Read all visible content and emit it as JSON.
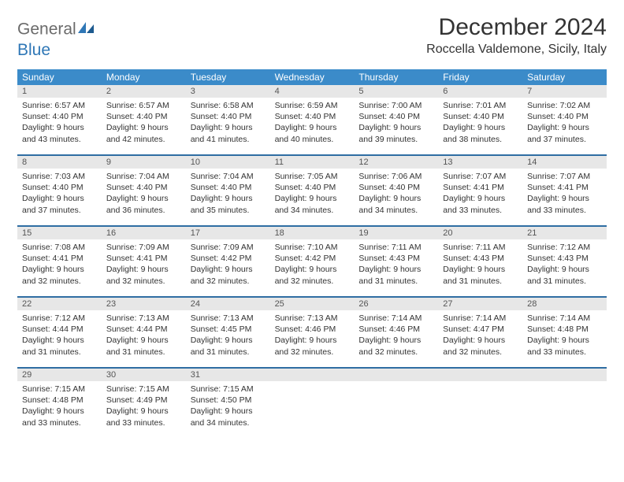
{
  "logo": {
    "general": "General",
    "blue": "Blue"
  },
  "title": "December 2024",
  "location": "Roccella Valdemone, Sicily, Italy",
  "colors": {
    "header_bg": "#3b8bc9",
    "header_text": "#ffffff",
    "week_border": "#2f6ea3",
    "daynum_bg": "#e7e7e7",
    "body_text": "#333333",
    "logo_gray": "#6b6b6b",
    "logo_blue": "#2f77b6",
    "page_bg": "#ffffff"
  },
  "day_names": [
    "Sunday",
    "Monday",
    "Tuesday",
    "Wednesday",
    "Thursday",
    "Friday",
    "Saturday"
  ],
  "weeks": [
    [
      {
        "num": "1",
        "sunrise": "Sunrise: 6:57 AM",
        "sunset": "Sunset: 4:40 PM",
        "daylight": "Daylight: 9 hours and 43 minutes."
      },
      {
        "num": "2",
        "sunrise": "Sunrise: 6:57 AM",
        "sunset": "Sunset: 4:40 PM",
        "daylight": "Daylight: 9 hours and 42 minutes."
      },
      {
        "num": "3",
        "sunrise": "Sunrise: 6:58 AM",
        "sunset": "Sunset: 4:40 PM",
        "daylight": "Daylight: 9 hours and 41 minutes."
      },
      {
        "num": "4",
        "sunrise": "Sunrise: 6:59 AM",
        "sunset": "Sunset: 4:40 PM",
        "daylight": "Daylight: 9 hours and 40 minutes."
      },
      {
        "num": "5",
        "sunrise": "Sunrise: 7:00 AM",
        "sunset": "Sunset: 4:40 PM",
        "daylight": "Daylight: 9 hours and 39 minutes."
      },
      {
        "num": "6",
        "sunrise": "Sunrise: 7:01 AM",
        "sunset": "Sunset: 4:40 PM",
        "daylight": "Daylight: 9 hours and 38 minutes."
      },
      {
        "num": "7",
        "sunrise": "Sunrise: 7:02 AM",
        "sunset": "Sunset: 4:40 PM",
        "daylight": "Daylight: 9 hours and 37 minutes."
      }
    ],
    [
      {
        "num": "8",
        "sunrise": "Sunrise: 7:03 AM",
        "sunset": "Sunset: 4:40 PM",
        "daylight": "Daylight: 9 hours and 37 minutes."
      },
      {
        "num": "9",
        "sunrise": "Sunrise: 7:04 AM",
        "sunset": "Sunset: 4:40 PM",
        "daylight": "Daylight: 9 hours and 36 minutes."
      },
      {
        "num": "10",
        "sunrise": "Sunrise: 7:04 AM",
        "sunset": "Sunset: 4:40 PM",
        "daylight": "Daylight: 9 hours and 35 minutes."
      },
      {
        "num": "11",
        "sunrise": "Sunrise: 7:05 AM",
        "sunset": "Sunset: 4:40 PM",
        "daylight": "Daylight: 9 hours and 34 minutes."
      },
      {
        "num": "12",
        "sunrise": "Sunrise: 7:06 AM",
        "sunset": "Sunset: 4:40 PM",
        "daylight": "Daylight: 9 hours and 34 minutes."
      },
      {
        "num": "13",
        "sunrise": "Sunrise: 7:07 AM",
        "sunset": "Sunset: 4:41 PM",
        "daylight": "Daylight: 9 hours and 33 minutes."
      },
      {
        "num": "14",
        "sunrise": "Sunrise: 7:07 AM",
        "sunset": "Sunset: 4:41 PM",
        "daylight": "Daylight: 9 hours and 33 minutes."
      }
    ],
    [
      {
        "num": "15",
        "sunrise": "Sunrise: 7:08 AM",
        "sunset": "Sunset: 4:41 PM",
        "daylight": "Daylight: 9 hours and 32 minutes."
      },
      {
        "num": "16",
        "sunrise": "Sunrise: 7:09 AM",
        "sunset": "Sunset: 4:41 PM",
        "daylight": "Daylight: 9 hours and 32 minutes."
      },
      {
        "num": "17",
        "sunrise": "Sunrise: 7:09 AM",
        "sunset": "Sunset: 4:42 PM",
        "daylight": "Daylight: 9 hours and 32 minutes."
      },
      {
        "num": "18",
        "sunrise": "Sunrise: 7:10 AM",
        "sunset": "Sunset: 4:42 PM",
        "daylight": "Daylight: 9 hours and 32 minutes."
      },
      {
        "num": "19",
        "sunrise": "Sunrise: 7:11 AM",
        "sunset": "Sunset: 4:43 PM",
        "daylight": "Daylight: 9 hours and 31 minutes."
      },
      {
        "num": "20",
        "sunrise": "Sunrise: 7:11 AM",
        "sunset": "Sunset: 4:43 PM",
        "daylight": "Daylight: 9 hours and 31 minutes."
      },
      {
        "num": "21",
        "sunrise": "Sunrise: 7:12 AM",
        "sunset": "Sunset: 4:43 PM",
        "daylight": "Daylight: 9 hours and 31 minutes."
      }
    ],
    [
      {
        "num": "22",
        "sunrise": "Sunrise: 7:12 AM",
        "sunset": "Sunset: 4:44 PM",
        "daylight": "Daylight: 9 hours and 31 minutes."
      },
      {
        "num": "23",
        "sunrise": "Sunrise: 7:13 AM",
        "sunset": "Sunset: 4:44 PM",
        "daylight": "Daylight: 9 hours and 31 minutes."
      },
      {
        "num": "24",
        "sunrise": "Sunrise: 7:13 AM",
        "sunset": "Sunset: 4:45 PM",
        "daylight": "Daylight: 9 hours and 31 minutes."
      },
      {
        "num": "25",
        "sunrise": "Sunrise: 7:13 AM",
        "sunset": "Sunset: 4:46 PM",
        "daylight": "Daylight: 9 hours and 32 minutes."
      },
      {
        "num": "26",
        "sunrise": "Sunrise: 7:14 AM",
        "sunset": "Sunset: 4:46 PM",
        "daylight": "Daylight: 9 hours and 32 minutes."
      },
      {
        "num": "27",
        "sunrise": "Sunrise: 7:14 AM",
        "sunset": "Sunset: 4:47 PM",
        "daylight": "Daylight: 9 hours and 32 minutes."
      },
      {
        "num": "28",
        "sunrise": "Sunrise: 7:14 AM",
        "sunset": "Sunset: 4:48 PM",
        "daylight": "Daylight: 9 hours and 33 minutes."
      }
    ],
    [
      {
        "num": "29",
        "sunrise": "Sunrise: 7:15 AM",
        "sunset": "Sunset: 4:48 PM",
        "daylight": "Daylight: 9 hours and 33 minutes."
      },
      {
        "num": "30",
        "sunrise": "Sunrise: 7:15 AM",
        "sunset": "Sunset: 4:49 PM",
        "daylight": "Daylight: 9 hours and 33 minutes."
      },
      {
        "num": "31",
        "sunrise": "Sunrise: 7:15 AM",
        "sunset": "Sunset: 4:50 PM",
        "daylight": "Daylight: 9 hours and 34 minutes."
      },
      {
        "num": "",
        "sunrise": "",
        "sunset": "",
        "daylight": ""
      },
      {
        "num": "",
        "sunrise": "",
        "sunset": "",
        "daylight": ""
      },
      {
        "num": "",
        "sunrise": "",
        "sunset": "",
        "daylight": ""
      },
      {
        "num": "",
        "sunrise": "",
        "sunset": "",
        "daylight": ""
      }
    ]
  ]
}
